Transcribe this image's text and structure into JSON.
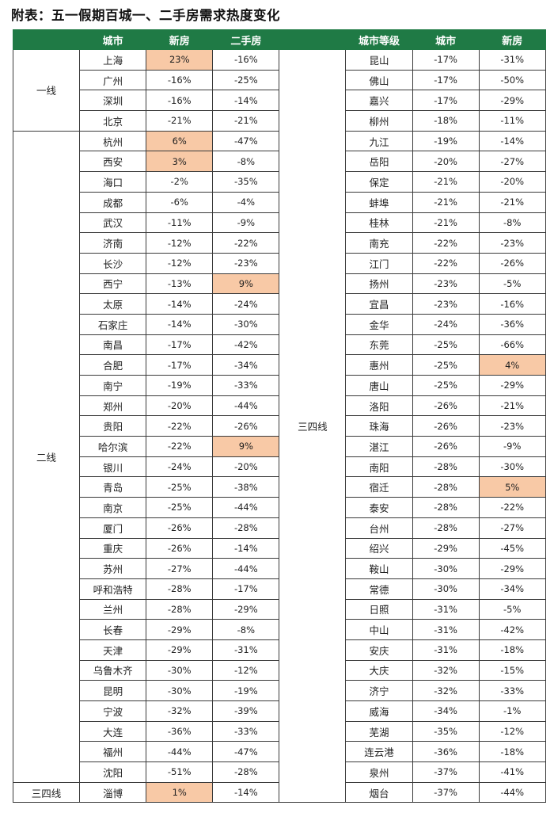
{
  "title": "附表：五一假期百城一、二手房需求热度变化",
  "colors": {
    "header_bg": "#1f7a45",
    "highlight": "#f8c9a6"
  },
  "header": [
    "",
    "城市",
    "新房",
    "二手房",
    "",
    "城市等级",
    "城市",
    "新房"
  ],
  "left_groups": [
    {
      "tier": "一线",
      "rows": [
        [
          "上海",
          "23%",
          "-16%"
        ],
        [
          "广州",
          "-16%",
          "-25%"
        ],
        [
          "深圳",
          "-16%",
          "-14%"
        ],
        [
          "北京",
          "-21%",
          "-21%"
        ]
      ]
    },
    {
      "tier": "二线",
      "rows": [
        [
          "杭州",
          "6%",
          "-47%"
        ],
        [
          "西安",
          "3%",
          "-8%"
        ],
        [
          "海口",
          "-2%",
          "-35%"
        ],
        [
          "成都",
          "-6%",
          "-4%"
        ],
        [
          "武汉",
          "-11%",
          "-9%"
        ],
        [
          "济南",
          "-12%",
          "-22%"
        ],
        [
          "长沙",
          "-12%",
          "-23%"
        ],
        [
          "西宁",
          "-13%",
          "9%"
        ],
        [
          "太原",
          "-14%",
          "-24%"
        ],
        [
          "石家庄",
          "-14%",
          "-30%"
        ],
        [
          "南昌",
          "-17%",
          "-42%"
        ],
        [
          "合肥",
          "-17%",
          "-34%"
        ],
        [
          "南宁",
          "-19%",
          "-33%"
        ],
        [
          "郑州",
          "-20%",
          "-44%"
        ],
        [
          "贵阳",
          "-22%",
          "-26%"
        ],
        [
          "哈尔滨",
          "-22%",
          "9%"
        ],
        [
          "银川",
          "-24%",
          "-20%"
        ],
        [
          "青岛",
          "-25%",
          "-38%"
        ],
        [
          "南京",
          "-25%",
          "-44%"
        ],
        [
          "厦门",
          "-26%",
          "-28%"
        ],
        [
          "重庆",
          "-26%",
          "-14%"
        ],
        [
          "苏州",
          "-27%",
          "-44%"
        ],
        [
          "呼和浩特",
          "-28%",
          "-17%"
        ],
        [
          "兰州",
          "-28%",
          "-29%"
        ],
        [
          "长春",
          "-29%",
          "-8%"
        ],
        [
          "天津",
          "-29%",
          "-31%"
        ],
        [
          "乌鲁木齐",
          "-30%",
          "-12%"
        ],
        [
          "昆明",
          "-30%",
          "-19%"
        ],
        [
          "宁波",
          "-32%",
          "-39%"
        ],
        [
          "大连",
          "-36%",
          "-33%"
        ],
        [
          "福州",
          "-44%",
          "-47%"
        ],
        [
          "沈阳",
          "-51%",
          "-28%"
        ]
      ]
    },
    {
      "tier": "三四线",
      "rows": [
        [
          "淄博",
          "1%",
          "-14%"
        ]
      ]
    }
  ],
  "right_group": {
    "tier": "三四线",
    "rows": [
      [
        "昆山",
        "-17%",
        "-31%"
      ],
      [
        "佛山",
        "-17%",
        "-50%"
      ],
      [
        "嘉兴",
        "-17%",
        "-29%"
      ],
      [
        "柳州",
        "-18%",
        "-11%"
      ],
      [
        "九江",
        "-19%",
        "-14%"
      ],
      [
        "岳阳",
        "-20%",
        "-27%"
      ],
      [
        "保定",
        "-21%",
        "-20%"
      ],
      [
        "蚌埠",
        "-21%",
        "-21%"
      ],
      [
        "桂林",
        "-21%",
        "-8%"
      ],
      [
        "南充",
        "-22%",
        "-23%"
      ],
      [
        "江门",
        "-22%",
        "-26%"
      ],
      [
        "扬州",
        "-23%",
        "-5%"
      ],
      [
        "宜昌",
        "-23%",
        "-16%"
      ],
      [
        "金华",
        "-24%",
        "-36%"
      ],
      [
        "东莞",
        "-25%",
        "-66%"
      ],
      [
        "惠州",
        "-25%",
        "4%"
      ],
      [
        "唐山",
        "-25%",
        "-29%"
      ],
      [
        "洛阳",
        "-26%",
        "-21%"
      ],
      [
        "珠海",
        "-26%",
        "-23%"
      ],
      [
        "湛江",
        "-26%",
        "-9%"
      ],
      [
        "南阳",
        "-28%",
        "-30%"
      ],
      [
        "宿迁",
        "-28%",
        "5%"
      ],
      [
        "泰安",
        "-28%",
        "-22%"
      ],
      [
        "台州",
        "-28%",
        "-27%"
      ],
      [
        "绍兴",
        "-29%",
        "-45%"
      ],
      [
        "鞍山",
        "-30%",
        "-29%"
      ],
      [
        "常德",
        "-30%",
        "-34%"
      ],
      [
        "日照",
        "-31%",
        "-5%"
      ],
      [
        "中山",
        "-31%",
        "-42%"
      ],
      [
        "安庆",
        "-31%",
        "-18%"
      ],
      [
        "大庆",
        "-32%",
        "-15%"
      ],
      [
        "济宁",
        "-32%",
        "-33%"
      ],
      [
        "威海",
        "-34%",
        "-1%"
      ],
      [
        "芜湖",
        "-35%",
        "-12%"
      ],
      [
        "连云港",
        "-36%",
        "-18%"
      ],
      [
        "泉州",
        "-37%",
        "-41%"
      ],
      [
        "烟台",
        "-37%",
        "-44%"
      ]
    ]
  }
}
